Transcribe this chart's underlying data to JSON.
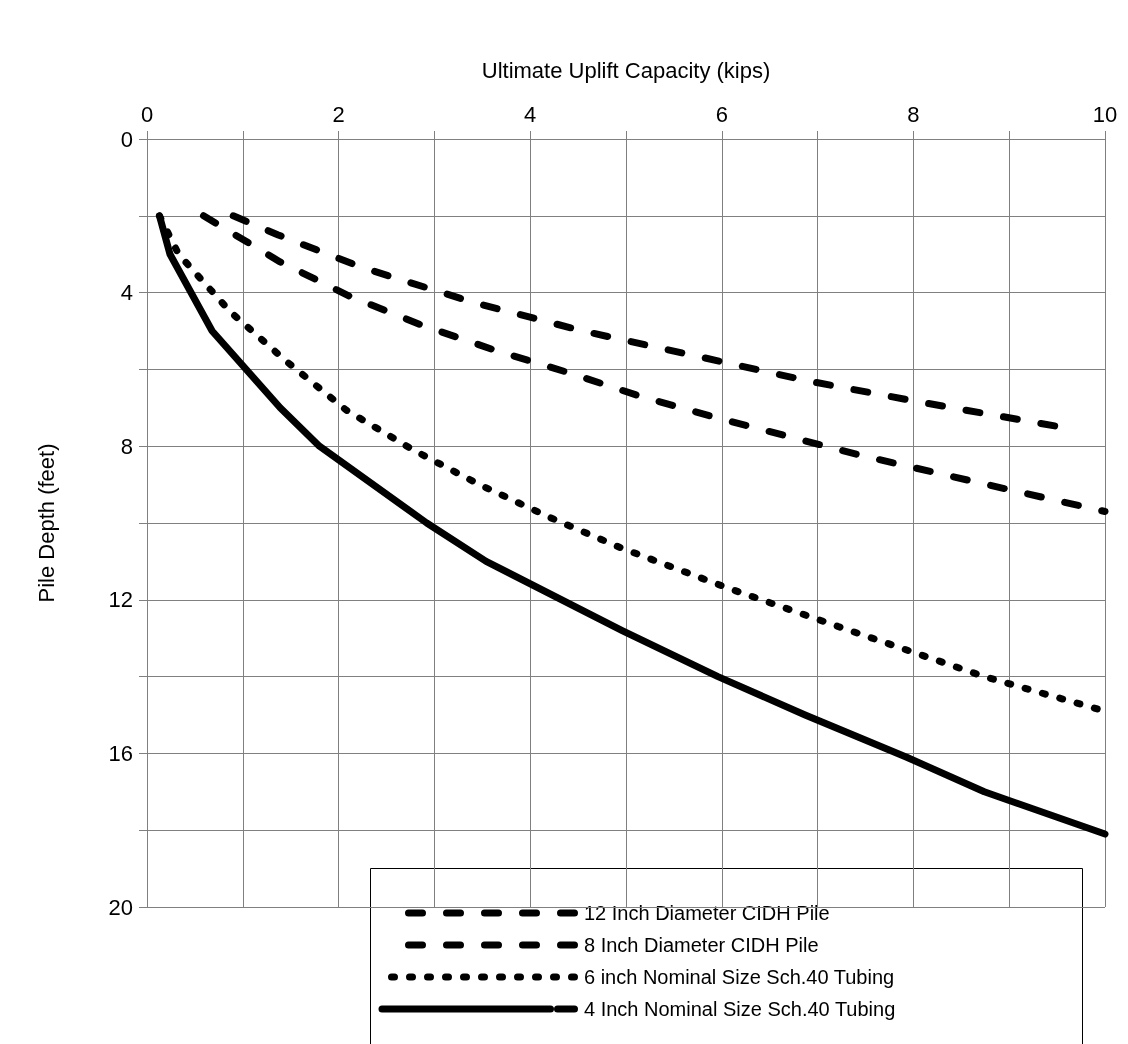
{
  "chart_data": {
    "type": "line",
    "xlabel": "Ultimate Uplift Capacity (kips)",
    "ylabel": "Pile Depth (feet)",
    "xlim": [
      0,
      10
    ],
    "xticks": [
      0,
      {
        "value": 1,
        "label": null
      },
      2,
      {
        "value": 3,
        "label": null
      },
      4,
      {
        "value": 5,
        "label": null
      },
      6,
      {
        "value": 7,
        "label": null
      },
      8,
      {
        "value": 9,
        "label": null
      },
      10
    ],
    "ylim": [
      20,
      0
    ],
    "yticks": [
      0,
      {
        "value": 2,
        "label": null
      },
      4,
      {
        "value": 6,
        "label": null
      },
      8,
      {
        "value": 10,
        "label": null
      },
      12,
      {
        "value": 14,
        "label": null
      },
      16,
      {
        "value": 18,
        "label": null
      },
      20
    ],
    "grid": true,
    "legend": "bottom right",
    "marker": "none",
    "series": [
      {
        "name": "12 Inch Diameter CIDH Pile",
        "color": "#000000",
        "line_style": "dashed",
        "x": [
          0.9,
          1.37,
          2.25,
          3.4,
          4.55,
          5.73,
          6.9,
          8.07,
          9.54
        ],
        "values": [
          2,
          2.5,
          3.35,
          4.25,
          5.0,
          5.65,
          6.3,
          6.85,
          7.5
        ]
      },
      {
        "name": "8 Inch Diameter CIDH Pile",
        "color": "#000000",
        "line_style": "dashed",
        "x": [
          0.59,
          1.39,
          2.12,
          2.87,
          3.63,
          4.42,
          5.15,
          5.93,
          6.7,
          7.47,
          8.25,
          9.03,
          10
        ],
        "values": [
          2,
          3.2,
          4.1,
          4.85,
          5.5,
          6.1,
          6.7,
          7.25,
          7.75,
          8.25,
          8.7,
          9.15,
          9.7
        ]
      },
      {
        "name": "6 inch Nominal Size Sch.40 Tubing",
        "color": "#000000",
        "line_style": "dotted",
        "x": [
          0.13,
          0.33,
          0.87,
          1.46,
          2.08,
          2.78,
          3.47,
          4.2,
          4.95,
          6.07,
          7.22,
          8.74,
          10
        ],
        "values": [
          2,
          3,
          4.5,
          5.8,
          7.06,
          8.1,
          9.0,
          9.85,
          10.65,
          11.7,
          12.7,
          14.0,
          14.9
        ]
      },
      {
        "name": "4 Inch Nominal Size Sch.40 Tubing",
        "color": "#000000",
        "line_style": "solid",
        "x": [
          0.13,
          0.24,
          0.68,
          1.39,
          1.8,
          2.92,
          3.54,
          4.96,
          5.96,
          6.87,
          7.93,
          8.74,
          10
        ],
        "values": [
          2,
          3,
          5,
          7,
          8,
          10,
          11,
          12.8,
          14,
          15,
          16.1,
          17,
          18.1
        ]
      }
    ]
  }
}
